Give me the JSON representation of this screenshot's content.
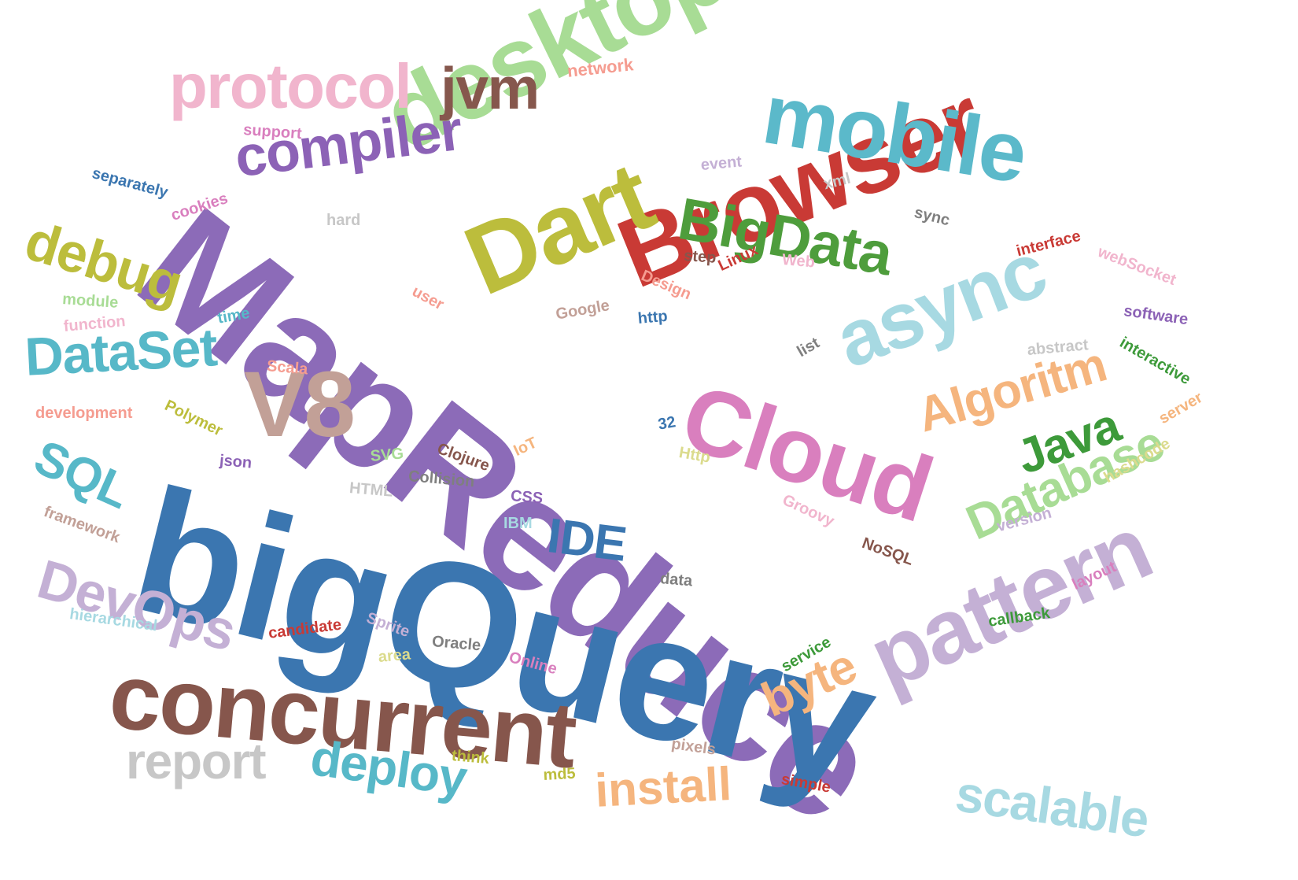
{
  "words": [
    {
      "text": "MapReduce",
      "color": "#8c6bb8"
    },
    {
      "text": "bigQuery",
      "color": "#3b76b0"
    },
    {
      "text": "Browser",
      "color": "#c93a35"
    },
    {
      "text": "desktop",
      "color": "#a8dc95"
    },
    {
      "text": "concurrent",
      "color": "#86564c"
    },
    {
      "text": "mobile",
      "color": "#5bb9ca"
    },
    {
      "text": "Cloud",
      "color": "#d97fbe"
    },
    {
      "text": "pattern",
      "color": "#c4b0d5"
    },
    {
      "text": "async",
      "color": "#a7d9e2"
    },
    {
      "text": "Dart",
      "color": "#bcbd3c"
    },
    {
      "text": "V8",
      "color": "#c2a097"
    },
    {
      "text": "protocol",
      "color": "#f1b5cd"
    },
    {
      "text": "compiler",
      "color": "#8c62b6"
    },
    {
      "text": "jvm",
      "color": "#86574d"
    },
    {
      "text": "BigData",
      "color": "#4e9d3c"
    },
    {
      "text": "debug",
      "color": "#bcbd3c"
    },
    {
      "text": "DataSet",
      "color": "#57b8c8"
    },
    {
      "text": "SQL",
      "color": "#57b8c8"
    },
    {
      "text": "DevOps",
      "color": "#c4b0d5"
    },
    {
      "text": "IDE",
      "color": "#3b76b0"
    },
    {
      "text": "Algoritm",
      "color": "#f5b57e"
    },
    {
      "text": "Java",
      "color": "#3d9a3a"
    },
    {
      "text": "Database",
      "color": "#a8dc95"
    },
    {
      "text": "byte",
      "color": "#f5b57e"
    },
    {
      "text": "install",
      "color": "#f5b57e"
    },
    {
      "text": "scalable",
      "color": "#a7d9e2"
    },
    {
      "text": "report",
      "color": "#c7c7c7"
    },
    {
      "text": "deploy",
      "color": "#57b8c8"
    },
    {
      "text": "network",
      "color": "#f59c90"
    },
    {
      "text": "support",
      "color": "#d97fbe"
    },
    {
      "text": "separately",
      "color": "#3b76b0"
    },
    {
      "text": "cookies",
      "color": "#d97fbe"
    },
    {
      "text": "hard",
      "color": "#c7c7c7"
    },
    {
      "text": "event",
      "color": "#c4b0d5"
    },
    {
      "text": "xml",
      "color": "#c7c7c7"
    },
    {
      "text": "sync",
      "color": "#7f7f7f"
    },
    {
      "text": "step",
      "color": "#86564c"
    },
    {
      "text": "Web",
      "color": "#f1b5cd"
    },
    {
      "text": "Linux",
      "color": "#c93a35"
    },
    {
      "text": "Design",
      "color": "#f59c90"
    },
    {
      "text": "interface",
      "color": "#c93a35"
    },
    {
      "text": "webSocket",
      "color": "#f1b5cd"
    },
    {
      "text": "module",
      "color": "#a8dc95"
    },
    {
      "text": "user",
      "color": "#f59c90"
    },
    {
      "text": "time",
      "color": "#57b8c8"
    },
    {
      "text": "Google",
      "color": "#c2a097"
    },
    {
      "text": "http",
      "color": "#3b76b0"
    },
    {
      "text": "software",
      "color": "#8c62b6"
    },
    {
      "text": "function",
      "color": "#f1b5cd"
    },
    {
      "text": "abstract",
      "color": "#c7c7c7"
    },
    {
      "text": "interactive",
      "color": "#3d9a3a"
    },
    {
      "text": "list",
      "color": "#7f7f7f"
    },
    {
      "text": "Scala",
      "color": "#f59c90"
    },
    {
      "text": "development",
      "color": "#f59c90"
    },
    {
      "text": "Polymer",
      "color": "#bcbd3c"
    },
    {
      "text": "32",
      "color": "#3b76b0"
    },
    {
      "text": "server",
      "color": "#f5b57e"
    },
    {
      "text": "Clojure",
      "color": "#86564c"
    },
    {
      "text": "IoT",
      "color": "#f5b57e"
    },
    {
      "text": "Http",
      "color": "#dbdb8d"
    },
    {
      "text": "SVG",
      "color": "#a8dc95"
    },
    {
      "text": "json",
      "color": "#8c62b6"
    },
    {
      "text": "Collision",
      "color": "#7f7f7f"
    },
    {
      "text": "HTML",
      "color": "#c7c7c7"
    },
    {
      "text": "CSS",
      "color": "#8c62b6"
    },
    {
      "text": "hashcode",
      "color": "#dbdb8d"
    },
    {
      "text": "Groovy",
      "color": "#f1b5cd"
    },
    {
      "text": "framework",
      "color": "#c2a097"
    },
    {
      "text": "IBM",
      "color": "#a7d9e2"
    },
    {
      "text": "version",
      "color": "#c4b0d5"
    },
    {
      "text": "NoSQL",
      "color": "#86564c"
    },
    {
      "text": "data",
      "color": "#7f7f7f"
    },
    {
      "text": "layout",
      "color": "#d97fbe"
    },
    {
      "text": "hierarchical",
      "color": "#a7d9e2"
    },
    {
      "text": "Sprite",
      "color": "#c4b0d5"
    },
    {
      "text": "candidate",
      "color": "#c93a35"
    },
    {
      "text": "callback",
      "color": "#3d9a3a"
    },
    {
      "text": "Oracle",
      "color": "#7f7f7f"
    },
    {
      "text": "area",
      "color": "#dbdb8d"
    },
    {
      "text": "Online",
      "color": "#d97fbe"
    },
    {
      "text": "service",
      "color": "#3d9a3a"
    },
    {
      "text": "think",
      "color": "#bcbd3c"
    },
    {
      "text": "pixels",
      "color": "#c2a097"
    },
    {
      "text": "md5",
      "color": "#bcbd3c"
    },
    {
      "text": "simple",
      "color": "#c93a35"
    }
  ]
}
